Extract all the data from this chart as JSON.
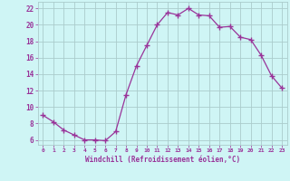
{
  "x": [
    0,
    1,
    2,
    3,
    4,
    5,
    6,
    7,
    8,
    9,
    10,
    11,
    12,
    13,
    14,
    15,
    16,
    17,
    18,
    19,
    20,
    21,
    22,
    23
  ],
  "y": [
    9.0,
    8.2,
    7.2,
    6.6,
    6.0,
    6.0,
    5.9,
    7.0,
    11.5,
    15.0,
    17.5,
    20.0,
    21.5,
    21.2,
    22.0,
    21.2,
    21.1,
    19.7,
    19.8,
    18.5,
    18.2,
    16.3,
    13.8,
    12.3
  ],
  "line_color": "#993399",
  "marker": "+",
  "marker_size": 4,
  "marker_linewidth": 1.0,
  "line_width": 0.9,
  "background_color": "#cff5f5",
  "grid_color": "#aacccc",
  "xlabel": "Windchill (Refroidissement éolien,°C)",
  "xlabel_color": "#993399",
  "tick_color": "#993399",
  "ylabel_ticks": [
    6,
    8,
    10,
    12,
    14,
    16,
    18,
    20,
    22
  ],
  "xtick_labels": [
    "0",
    "1",
    "2",
    "3",
    "4",
    "5",
    "6",
    "7",
    "8",
    "9",
    "10",
    "11",
    "12",
    "13",
    "14",
    "15",
    "16",
    "17",
    "18",
    "19",
    "20",
    "21",
    "22",
    "23"
  ],
  "xlim": [
    -0.5,
    23.5
  ],
  "ylim": [
    5.4,
    22.8
  ]
}
